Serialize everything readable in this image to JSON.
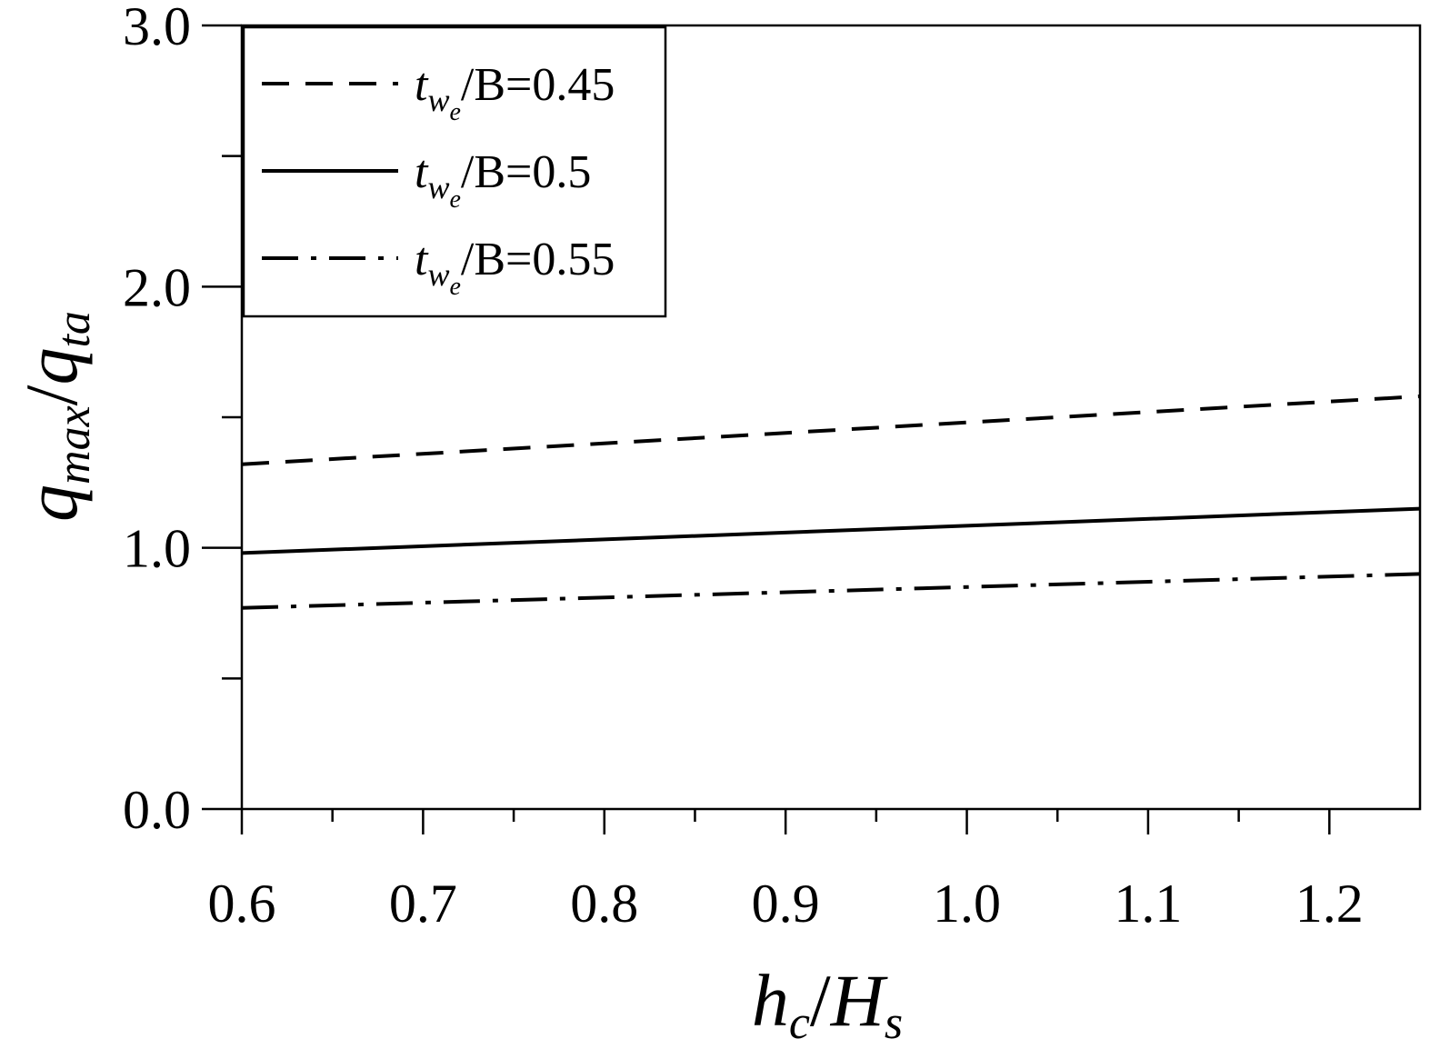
{
  "chart_data": {
    "type": "line",
    "title": "",
    "xlabel": {
      "main": "h",
      "main_sub": "c",
      "sep": "/",
      "second": "H",
      "second_sub": "s"
    },
    "ylabel": {
      "main": "q",
      "main_sub": "max",
      "sep": "/",
      "second": "q",
      "second_sub": "ta"
    },
    "xlim": [
      0.6,
      1.25
    ],
    "ylim": [
      0.0,
      3.0
    ],
    "x_ticks": [
      "0.6",
      "0.7",
      "0.8",
      "0.9",
      "1.0",
      "1.1",
      "1.2"
    ],
    "y_ticks": [
      "0.0",
      "1.0",
      "2.0",
      "3.0"
    ],
    "grid": false,
    "legend_position": "top-left",
    "series": [
      {
        "name": "t_we/B=0.45",
        "legend": {
          "var": "t",
          "sub": "w",
          "subsub": "e",
          "rest": "/B=0.45"
        },
        "style": "dashed",
        "color": "#000000",
        "x": [
          0.6,
          1.25
        ],
        "y": [
          1.32,
          1.58
        ]
      },
      {
        "name": "t_we/B=0.5",
        "legend": {
          "var": "t",
          "sub": "w",
          "subsub": "e",
          "rest": "/B=0.5"
        },
        "style": "solid",
        "color": "#000000",
        "x": [
          0.6,
          1.25
        ],
        "y": [
          0.98,
          1.15
        ]
      },
      {
        "name": "t_we/B=0.55",
        "legend": {
          "var": "t",
          "sub": "w",
          "subsub": "e",
          "rest": "/B=0.55"
        },
        "style": "dashdot",
        "color": "#000000",
        "x": [
          0.6,
          1.25
        ],
        "y": [
          0.77,
          0.9
        ]
      }
    ]
  }
}
